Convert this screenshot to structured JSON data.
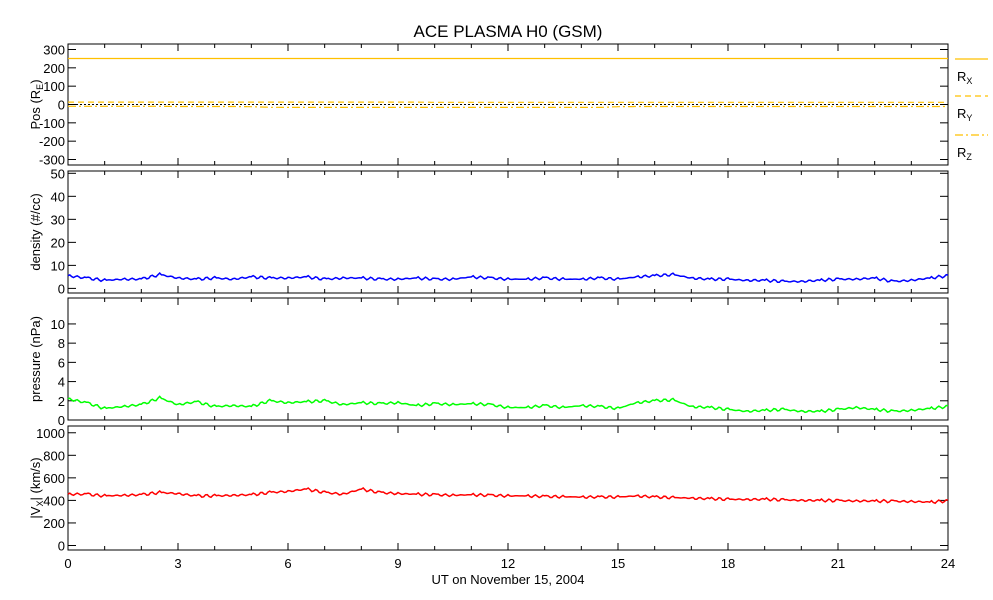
{
  "chart_data": {
    "title": "ACE PLASMA H0 (GSM)",
    "xlabel": "UT on November 15, 2004",
    "type": "line",
    "xlim": [
      0,
      24
    ],
    "xticks": [
      "0",
      "3",
      "6",
      "9",
      "12",
      "15",
      "18",
      "21",
      "24"
    ],
    "x": [
      0,
      0.5,
      1,
      1.5,
      2,
      2.5,
      3,
      3.5,
      4,
      4.5,
      5,
      5.5,
      6,
      6.5,
      7,
      7.5,
      8,
      8.5,
      9,
      9.5,
      10,
      10.5,
      11,
      11.5,
      12,
      12.5,
      13,
      13.5,
      14,
      14.5,
      15,
      15.5,
      16,
      16.5,
      17,
      17.5,
      18,
      18.5,
      19,
      19.5,
      20,
      20.5,
      21,
      21.5,
      22,
      22.5,
      23,
      23.5,
      24
    ],
    "panels": [
      {
        "ylabel": "Pos (R",
        "ylabel_sub": "E",
        "ylabel_end": ")",
        "ylim": [
          -330,
          330
        ],
        "yticks": [
          "300",
          "200",
          "100",
          "0",
          "-100",
          "-200",
          "-300"
        ],
        "ytick_values": [
          300,
          200,
          100,
          0,
          -100,
          -200,
          -300
        ],
        "zero_line": true,
        "series": [
          {
            "name": "R",
            "sub": "X",
            "color": "#ffc000",
            "dash": "",
            "values": [
              251,
              251,
              251,
              251,
              251,
              251,
              251,
              251,
              251,
              251,
              251,
              251,
              251,
              251,
              251,
              251,
              251,
              251,
              251,
              251,
              251,
              251,
              251,
              251,
              251,
              251,
              251,
              251,
              251,
              251,
              251,
              251,
              251,
              251,
              251,
              251,
              251,
              251,
              251,
              251,
              251,
              251,
              251,
              251,
              251,
              251,
              251,
              251,
              251
            ]
          },
          {
            "name": "R",
            "sub": "Y",
            "color": "#ffc000",
            "dash": "6,4",
            "values": [
              13,
              13,
              13,
              13,
              13,
              13,
              13,
              13,
              13,
              13,
              13,
              13,
              13,
              13,
              13,
              13,
              13,
              13,
              13,
              13,
              12,
              12,
              12,
              12,
              12,
              12,
              12,
              12,
              12,
              12,
              12,
              12,
              12,
              12,
              12,
              12,
              12,
              12,
              12,
              12,
              12,
              12,
              12,
              12,
              12,
              12,
              12,
              12,
              12
            ]
          },
          {
            "name": "R",
            "sub": "Z",
            "color": "#ffc000",
            "dash": "8,3,2,3",
            "values": [
              -10,
              -10,
              -10,
              -10,
              -10,
              -10,
              -11,
              -11,
              -11,
              -11,
              -12,
              -15,
              -16,
              -16,
              -16,
              -16,
              -16,
              -16,
              -16,
              -16,
              -16,
              -16,
              -16,
              -16,
              -16,
              -16,
              -16,
              -16,
              -16,
              -16,
              -12,
              -11,
              -11,
              -11,
              -11,
              -11,
              -11,
              -11,
              -11,
              -11,
              -11,
              -11,
              -11,
              -11,
              -11,
              -11,
              -11,
              -11,
              -11
            ]
          }
        ]
      },
      {
        "ylabel": "density (#/cc)",
        "ylim": [
          -2,
          51
        ],
        "yticks": [
          "50",
          "40",
          "30",
          "20",
          "10",
          "0"
        ],
        "ytick_values": [
          50,
          40,
          30,
          20,
          10,
          0
        ],
        "series": [
          {
            "name": "density",
            "color": "#0000ff",
            "values": [
              5.5,
              4.5,
              3.5,
              4,
              4,
              6,
              4.5,
              4,
              4.5,
              4,
              5,
              4.5,
              4.5,
              5,
              4,
              4.5,
              4.5,
              4,
              4,
              4.5,
              4,
              4,
              5,
              4.5,
              4,
              4,
              4.5,
              4,
              4,
              4.5,
              4,
              5,
              5.5,
              6,
              4.5,
              4,
              4,
              3.5,
              3.5,
              3,
              3,
              3.5,
              4,
              4,
              4.5,
              3,
              3.5,
              4.5,
              5.5
            ]
          }
        ]
      },
      {
        "ylabel": "pressure (nPa)",
        "ylim": [
          0,
          12.7
        ],
        "yticks": [
          "10",
          "8",
          "6",
          "4",
          "2",
          "0"
        ],
        "ytick_values": [
          10,
          8,
          6,
          4,
          2,
          0
        ],
        "series": [
          {
            "name": "pressure",
            "color": "#00ff00",
            "values": [
              2.2,
              1.8,
              1.2,
              1.4,
              1.6,
              2.3,
              1.6,
              1.9,
              1.4,
              1.5,
              1.4,
              2,
              1.8,
              1.9,
              2,
              1.6,
              1.8,
              1.7,
              1.8,
              1.5,
              1.7,
              1.6,
              1.7,
              1.6,
              1.3,
              1.3,
              1.5,
              1.3,
              1.5,
              1.4,
              1.2,
              1.8,
              2,
              2.1,
              1.4,
              1.3,
              1.1,
              0.9,
              1,
              1.1,
              0.9,
              0.9,
              1.1,
              1.3,
              1.1,
              0.9,
              1,
              1.2,
              1.4
            ]
          }
        ]
      },
      {
        "ylabel": "|V",
        "ylabel_sub": "X",
        "ylabel_end": "| (km/s)",
        "ylim": [
          -40,
          1060
        ],
        "yticks": [
          "1000",
          "800",
          "600",
          "400",
          "200",
          "0"
        ],
        "ytick_values": [
          1000,
          800,
          600,
          400,
          200,
          0
        ],
        "series": [
          {
            "name": "Vx",
            "color": "#ff0000",
            "values": [
              455,
              455,
              440,
              445,
              450,
              470,
              460,
              440,
              440,
              445,
              450,
              470,
              480,
              500,
              470,
              455,
              500,
              470,
              460,
              455,
              450,
              445,
              450,
              445,
              440,
              440,
              435,
              432,
              430,
              430,
              430,
              440,
              430,
              425,
              420,
              415,
              410,
              408,
              410,
              405,
              400,
              400,
              398,
              395,
              395,
              392,
              390,
              385,
              395
            ]
          }
        ]
      }
    ]
  }
}
